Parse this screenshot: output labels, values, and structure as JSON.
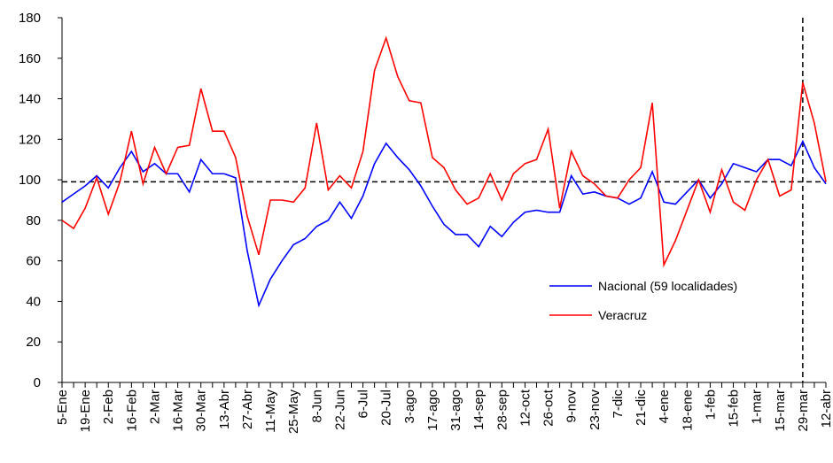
{
  "chart_data": {
    "type": "line",
    "categories": [
      "5-Ene",
      null,
      "19-Ene",
      null,
      "2-Feb",
      null,
      "16-Feb",
      null,
      "2-Mar",
      null,
      "16-Mar",
      null,
      "30-Mar",
      null,
      "13-Abr",
      null,
      "27-Abr",
      null,
      "11-May",
      null,
      "25-May",
      null,
      "8-Jun",
      null,
      "22-Jun",
      null,
      "6-Jul",
      null,
      "20-Jul",
      null,
      "3-ago",
      null,
      "17-ago",
      null,
      "31-ago",
      null,
      "14-sep",
      null,
      "28-sep",
      null,
      "12-oct",
      null,
      "26-oct",
      null,
      "9-nov",
      null,
      "23-nov",
      null,
      "7-dic",
      null,
      "21-dic",
      null,
      "4-ene",
      null,
      "18-ene",
      null,
      "1-feb",
      null,
      "15-feb",
      null,
      "1-mar",
      null,
      "15-mar",
      null,
      "29-mar",
      null,
      "12-abr"
    ],
    "series": [
      {
        "name": "Nacional (59 localidades)",
        "color": "#0000ff",
        "values": [
          89,
          93,
          97,
          102,
          96,
          106,
          114,
          104,
          108,
          103,
          103,
          94,
          110,
          103,
          103,
          101,
          65,
          38,
          51,
          60,
          68,
          71,
          77,
          80,
          89,
          81,
          92,
          108,
          118,
          111,
          105,
          97,
          87,
          78,
          73,
          73,
          67,
          77,
          72,
          79,
          84,
          85,
          84,
          84,
          102,
          93,
          94,
          92,
          91,
          88,
          91,
          104,
          89,
          88,
          94,
          100,
          91,
          98,
          108,
          106,
          104,
          110,
          110,
          107,
          119,
          106,
          98
        ]
      },
      {
        "name": "Veracruz",
        "color": "#ff0000",
        "values": [
          80,
          76,
          86,
          101,
          83,
          99,
          124,
          98,
          116,
          103,
          116,
          117,
          145,
          124,
          124,
          111,
          82,
          63,
          90,
          90,
          89,
          96,
          128,
          95,
          102,
          96,
          114,
          154,
          170,
          151,
          139,
          138,
          111,
          106,
          95,
          88,
          91,
          103,
          90,
          103,
          108,
          110,
          125,
          86,
          114,
          102,
          98,
          92,
          91,
          100,
          106,
          138,
          58,
          70,
          85,
          100,
          84,
          105,
          89,
          85,
          100,
          110,
          92,
          95,
          148,
          128,
          99
        ]
      }
    ],
    "ylim": [
      0,
      180
    ],
    "yticks": [
      0,
      20,
      40,
      60,
      80,
      100,
      120,
      140,
      160,
      180
    ],
    "reference_line": 99,
    "marker_category_index": 64,
    "legend": "lower-right"
  }
}
